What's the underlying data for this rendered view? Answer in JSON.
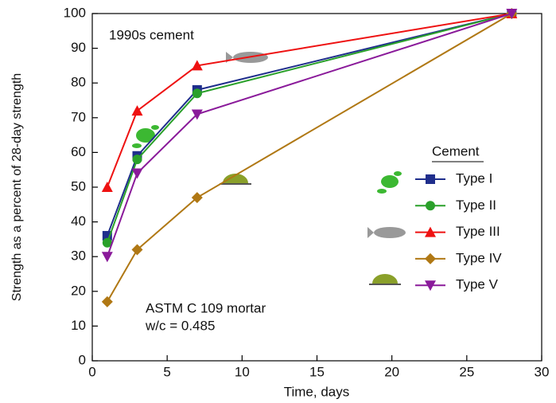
{
  "chart_data": {
    "type": "line",
    "x_label": "Time, days",
    "y_label": "Strength as a percent of 28-day strength",
    "annotations": [
      "1990s cement",
      "ASTM C 109 mortar",
      "w/c = 0.485"
    ],
    "legend_title": "Cement",
    "x": [
      1,
      3,
      7,
      28
    ],
    "series": [
      {
        "name": "Type I",
        "color": "#1f2e8c",
        "marker": "square",
        "values": [
          36,
          59,
          78,
          100
        ]
      },
      {
        "name": "Type II",
        "color": "#2aa02a",
        "marker": "circle",
        "values": [
          34,
          58,
          77,
          100
        ]
      },
      {
        "name": "Type III",
        "color": "#ee1111",
        "marker": "triangle-up",
        "values": [
          50,
          72,
          85,
          100
        ]
      },
      {
        "name": "Type IV",
        "color": "#b07814",
        "marker": "diamond",
        "values": [
          17,
          32,
          47,
          100
        ]
      },
      {
        "name": "Type V",
        "color": "#8a1a9a",
        "marker": "triangle-down",
        "values": [
          30,
          54,
          71,
          100
        ]
      }
    ],
    "xlim": [
      0,
      30
    ],
    "xticks": [
      0,
      5,
      10,
      15,
      20,
      25,
      30
    ],
    "ylim": [
      0,
      100
    ],
    "yticks": [
      0,
      10,
      20,
      30,
      40,
      50,
      60,
      70,
      80,
      90,
      100
    ],
    "grid": false
  }
}
